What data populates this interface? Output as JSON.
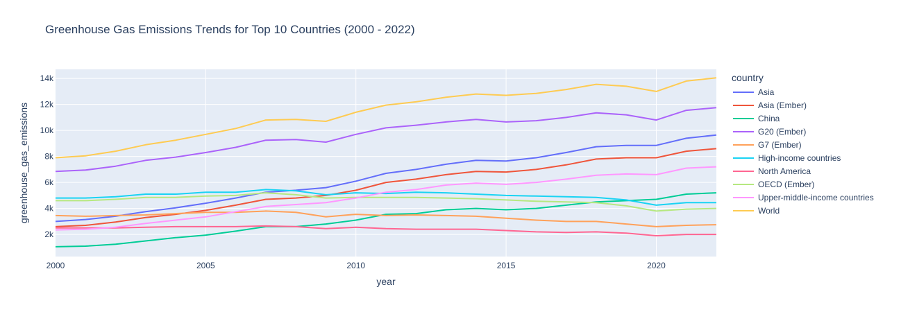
{
  "chart_data": {
    "type": "line",
    "title": "Greenhouse Gas Emissions Trends for Top 10 Countries (2000 - 2022)",
    "xlabel": "year",
    "ylabel": "greenhouse_gas_emissions",
    "xlim": [
      2000,
      2022
    ],
    "ylim": [
      300,
      14700
    ],
    "x_ticks": [
      2000,
      2005,
      2010,
      2015,
      2020
    ],
    "y_ticks": [
      2000,
      4000,
      6000,
      8000,
      10000,
      12000,
      14000
    ],
    "y_tick_labels": [
      "2k",
      "4k",
      "6k",
      "8k",
      "10k",
      "12k",
      "14k"
    ],
    "grid": true,
    "legend_title": "country",
    "legend_position": "right",
    "x": [
      2000,
      2001,
      2002,
      2003,
      2004,
      2005,
      2006,
      2007,
      2008,
      2009,
      2010,
      2011,
      2012,
      2013,
      2014,
      2015,
      2016,
      2017,
      2018,
      2019,
      2020,
      2021,
      2022
    ],
    "series": [
      {
        "name": "Asia",
        "color": "#636efa",
        "values": [
          3000,
          3150,
          3400,
          3750,
          4050,
          4400,
          4800,
          5250,
          5400,
          5600,
          6100,
          6700,
          7000,
          7400,
          7700,
          7650,
          7900,
          8300,
          8750,
          8850,
          8850,
          9400,
          9650
        ]
      },
      {
        "name": "Asia (Ember)",
        "color": "#EF553B",
        "values": [
          2600,
          2700,
          2950,
          3300,
          3550,
          3850,
          4250,
          4700,
          4800,
          5000,
          5400,
          6000,
          6250,
          6600,
          6850,
          6800,
          7000,
          7350,
          7800,
          7900,
          7900,
          8400,
          8600
        ]
      },
      {
        "name": "China",
        "color": "#00cc96",
        "values": [
          1050,
          1100,
          1250,
          1500,
          1750,
          1950,
          2250,
          2600,
          2600,
          2800,
          3100,
          3550,
          3600,
          3900,
          4000,
          3900,
          4000,
          4250,
          4500,
          4600,
          4700,
          5100,
          5200
        ]
      },
      {
        "name": "G20 (Ember)",
        "color": "#ab63fa",
        "values": [
          6850,
          6950,
          7250,
          7700,
          7950,
          8300,
          8700,
          9250,
          9300,
          9100,
          9700,
          10200,
          10400,
          10650,
          10850,
          10650,
          10750,
          11000,
          11350,
          11200,
          10800,
          11550,
          11750
        ]
      },
      {
        "name": "G7 (Ember)",
        "color": "#FFA15A",
        "values": [
          3450,
          3400,
          3450,
          3500,
          3600,
          3700,
          3700,
          3800,
          3700,
          3350,
          3550,
          3450,
          3500,
          3450,
          3400,
          3250,
          3100,
          3000,
          3000,
          2800,
          2600,
          2700,
          2750
        ]
      },
      {
        "name": "High-income countries",
        "color": "#19d3f3",
        "values": [
          4800,
          4800,
          4900,
          5100,
          5100,
          5250,
          5250,
          5450,
          5350,
          5050,
          5200,
          5150,
          5250,
          5200,
          5100,
          5000,
          4950,
          4900,
          4850,
          4650,
          4250,
          4450,
          4450
        ]
      },
      {
        "name": "North America",
        "color": "#FF6692",
        "values": [
          2500,
          2500,
          2500,
          2550,
          2600,
          2600,
          2600,
          2650,
          2600,
          2450,
          2550,
          2450,
          2400,
          2400,
          2400,
          2300,
          2200,
          2150,
          2200,
          2100,
          1900,
          2000,
          2000
        ]
      },
      {
        "name": "OECD (Ember)",
        "color": "#B6E880",
        "values": [
          4600,
          4600,
          4700,
          4850,
          4850,
          4950,
          5000,
          5200,
          5050,
          4800,
          4850,
          4850,
          4850,
          4800,
          4750,
          4650,
          4550,
          4500,
          4450,
          4200,
          3800,
          3950,
          4000
        ]
      },
      {
        "name": "Upper-middle-income countries",
        "color": "#FF97FF",
        "values": [
          2350,
          2400,
          2550,
          2850,
          3100,
          3350,
          3750,
          4150,
          4300,
          4450,
          4800,
          5250,
          5450,
          5800,
          5950,
          5850,
          6000,
          6250,
          6550,
          6650,
          6600,
          7100,
          7200
        ]
      },
      {
        "name": "World",
        "color": "#FECB52",
        "values": [
          7900,
          8050,
          8400,
          8900,
          9250,
          9700,
          10150,
          10800,
          10850,
          10700,
          11400,
          11950,
          12200,
          12550,
          12800,
          12700,
          12850,
          13150,
          13550,
          13400,
          13000,
          13800,
          14050
        ]
      }
    ]
  }
}
